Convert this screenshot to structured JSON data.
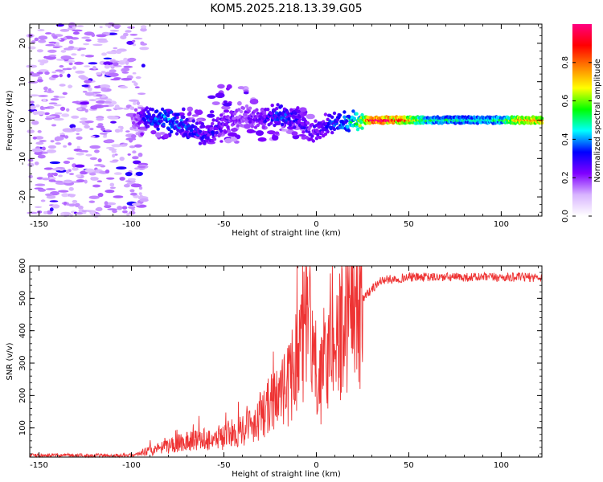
{
  "title": "KOM5.2025.218.13.39.G05",
  "chart_data": [
    {
      "type": "heatmap",
      "title": "KOM5.2025.218.13.39.G05",
      "xlabel": "Height of straight line (km)",
      "ylabel": "Frequency (Hz)",
      "xlim": [
        -155,
        122
      ],
      "ylim": [
        -25,
        25
      ],
      "xticks": [
        -150,
        -100,
        -50,
        0,
        50,
        100
      ],
      "yticks": [
        -20,
        -10,
        0,
        10,
        20
      ],
      "colorbar": {
        "label": "Normalized spectral amplitude",
        "ticks": [
          "0.0",
          "0.2",
          "0.4",
          "0.6",
          "0.8"
        ],
        "range": [
          0,
          1
        ],
        "colors": [
          "#ffffff",
          "#d8b4ff",
          "#8000ff",
          "#0000ff",
          "#00ffff",
          "#00ff00",
          "#ffff00",
          "#ff8000",
          "#ff0000",
          "#ff0080"
        ]
      },
      "ridge": [
        {
          "x": -100,
          "f": 0.5,
          "a": 0.15
        },
        {
          "x": -90,
          "f": 0.5,
          "a": 0.35
        },
        {
          "x": -80,
          "f": 0.0,
          "a": 0.4
        },
        {
          "x": -70,
          "f": -2.0,
          "a": 0.35
        },
        {
          "x": -60,
          "f": -4.0,
          "a": 0.3
        },
        {
          "x": -50,
          "f": -1.0,
          "a": 0.25
        },
        {
          "x": -40,
          "f": 1.0,
          "a": 0.2
        },
        {
          "x": -30,
          "f": 0.5,
          "a": 0.25
        },
        {
          "x": -20,
          "f": 1.5,
          "a": 0.35
        },
        {
          "x": -10,
          "f": 0.5,
          "a": 0.3
        },
        {
          "x": -2,
          "f": -3.5,
          "a": 0.25
        },
        {
          "x": 5,
          "f": -1.0,
          "a": 0.3
        },
        {
          "x": 15,
          "f": -0.5,
          "a": 0.4
        },
        {
          "x": 25,
          "f": 0.0,
          "a": 0.6
        },
        {
          "x": 30,
          "f": 0.0,
          "a": 0.95
        },
        {
          "x": 45,
          "f": 0.0,
          "a": 0.85
        },
        {
          "x": 60,
          "f": 0.0,
          "a": 0.5
        },
        {
          "x": 80,
          "f": 0.0,
          "a": 0.45
        },
        {
          "x": 100,
          "f": 0.0,
          "a": 0.5
        },
        {
          "x": 110,
          "f": 0.0,
          "a": 0.75
        },
        {
          "x": 122,
          "f": 0.0,
          "a": 0.8
        }
      ]
    },
    {
      "type": "line",
      "xlabel": "Height of straight line (km)",
      "ylabel": "SNR (v/v)",
      "xlim": [
        -155,
        122
      ],
      "ylim": [
        10,
        600
      ],
      "xticks": [
        -150,
        -100,
        -50,
        0,
        50,
        100
      ],
      "yticks": [
        100,
        200,
        300,
        400,
        500,
        600
      ],
      "series": [
        {
          "name": "SNR",
          "color": "#ee3333",
          "envelope": [
            {
              "x": -155,
              "y": 15
            },
            {
              "x": -100,
              "y": 15
            },
            {
              "x": -85,
              "y": 35
            },
            {
              "x": -70,
              "y": 60
            },
            {
              "x": -50,
              "y": 70
            },
            {
              "x": -35,
              "y": 110
            },
            {
              "x": -25,
              "y": 170
            },
            {
              "x": -15,
              "y": 230
            },
            {
              "x": -8,
              "y": 380
            },
            {
              "x": -3,
              "y": 430
            },
            {
              "x": 0,
              "y": 200
            },
            {
              "x": 3,
              "y": 250
            },
            {
              "x": 8,
              "y": 350
            },
            {
              "x": 15,
              "y": 410
            },
            {
              "x": 25,
              "y": 500
            },
            {
              "x": 35,
              "y": 555
            },
            {
              "x": 50,
              "y": 565
            },
            {
              "x": 122,
              "y": 565
            }
          ]
        }
      ]
    }
  ]
}
